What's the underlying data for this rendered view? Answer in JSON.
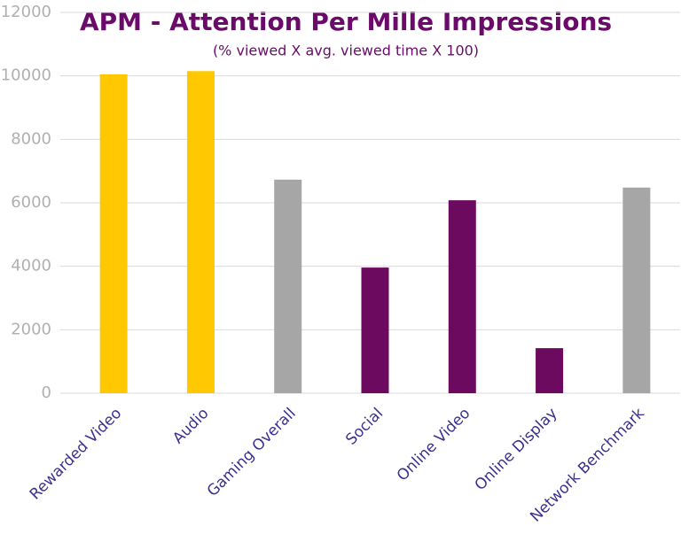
{
  "chart_data": {
    "type": "bar",
    "title": "APM - Attention Per Mille Impressions",
    "subtitle": "(% viewed X avg. viewed time X 100)",
    "categories": [
      "Rewarded Video",
      "Audio",
      "Gaming Overall",
      "Social",
      "Online Video",
      "Online Display",
      "Network Benchmark"
    ],
    "values": [
      10050,
      10150,
      6730,
      3960,
      6080,
      1420,
      6480
    ],
    "colors": [
      "#ffc800",
      "#ffc800",
      "#a6a6a6",
      "#6b0a5e",
      "#6b0a5e",
      "#6b0a5e",
      "#a6a6a6"
    ],
    "ylim": [
      0,
      12000
    ],
    "yticks": [
      0,
      2000,
      4000,
      6000,
      8000,
      10000,
      12000
    ],
    "grid": true
  }
}
